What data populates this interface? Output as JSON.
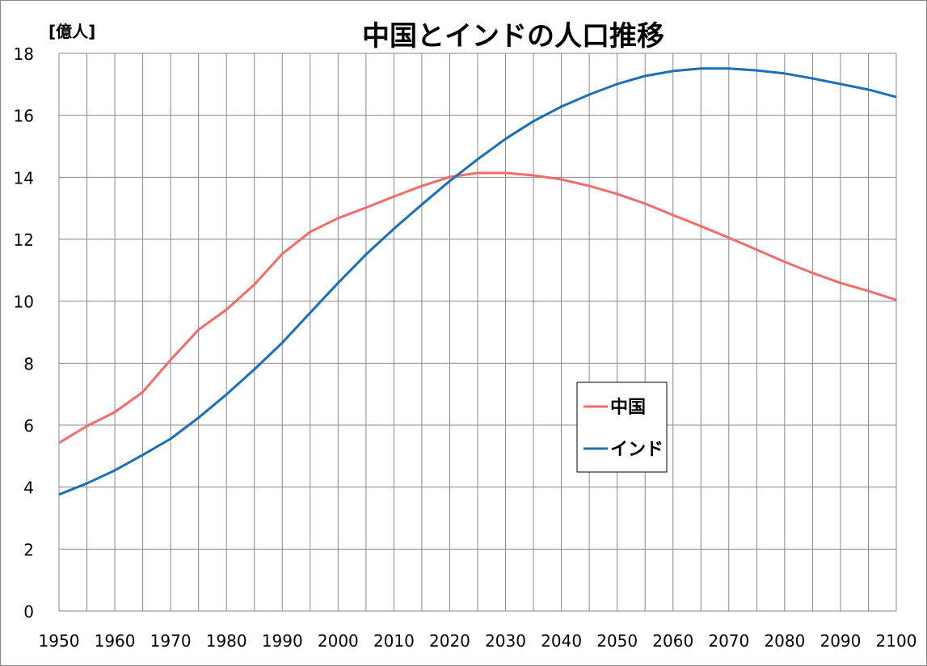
{
  "chart_data": {
    "type": "line",
    "title": "中国とインドの人口推移",
    "ylabel": "[億人]",
    "xlabel": "",
    "xlim": [
      1950,
      2100
    ],
    "ylim": [
      0,
      18
    ],
    "grid": true,
    "legend_position": "center-right",
    "x_ticks": [
      1950,
      1960,
      1970,
      1980,
      1990,
      2000,
      2010,
      2020,
      2030,
      2040,
      2050,
      2060,
      2070,
      2080,
      2090,
      2100
    ],
    "y_ticks": [
      0,
      2,
      4,
      6,
      8,
      10,
      12,
      14,
      16,
      18
    ],
    "x": [
      1950,
      1955,
      1960,
      1965,
      1970,
      1975,
      1980,
      1985,
      1990,
      1995,
      2000,
      2005,
      2010,
      2015,
      2020,
      2025,
      2030,
      2035,
      2040,
      2045,
      2050,
      2055,
      2060,
      2065,
      2070,
      2075,
      2080,
      2085,
      2090,
      2095,
      2100
    ],
    "series": [
      {
        "name": "中国",
        "color": "#f46b6b",
        "values": [
          5.43,
          5.97,
          6.42,
          7.07,
          8.11,
          9.08,
          9.73,
          10.54,
          11.53,
          12.24,
          12.68,
          13.02,
          13.38,
          13.72,
          14.01,
          14.14,
          14.14,
          14.06,
          13.93,
          13.72,
          13.46,
          13.15,
          12.78,
          12.42,
          12.05,
          11.66,
          11.27,
          10.91,
          10.59,
          10.33,
          10.04
        ]
      },
      {
        "name": "インド",
        "color": "#1a6fb8",
        "values": [
          3.76,
          4.12,
          4.54,
          5.04,
          5.56,
          6.24,
          6.99,
          7.8,
          8.66,
          9.63,
          10.59,
          11.51,
          12.34,
          13.12,
          13.88,
          14.58,
          15.24,
          15.81,
          16.28,
          16.67,
          17.01,
          17.27,
          17.43,
          17.51,
          17.51,
          17.45,
          17.35,
          17.19,
          17.01,
          16.83,
          16.59
        ]
      }
    ]
  }
}
